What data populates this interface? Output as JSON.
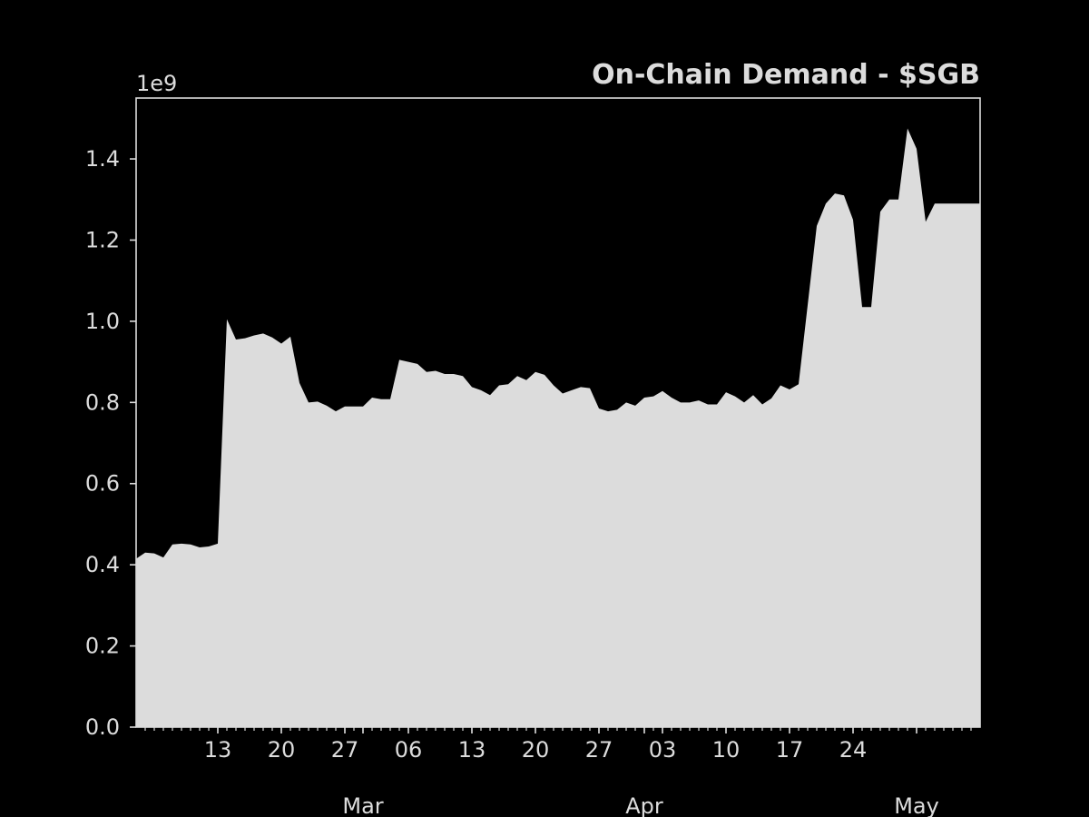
{
  "chart_data": {
    "type": "area",
    "title": "On-Chain Demand - $SGB",
    "xlabel": "",
    "ylabel": "",
    "y_offset_label": "1e9",
    "ylim": [
      0,
      1550000000.0
    ],
    "y_ticks": [
      0,
      200000000.0,
      400000000.0,
      600000000.0,
      800000000.0,
      1000000000.0,
      1200000000.0,
      1400000000.0
    ],
    "y_tick_labels": [
      "0.0",
      "0.2",
      "0.4",
      "0.6",
      "0.8",
      "1.0",
      "1.2",
      "1.4"
    ],
    "xlim": [
      "2022-02-04",
      "2022-05-08"
    ],
    "x_major_ticks": [
      {
        "date": "2022-02-13",
        "label": "13"
      },
      {
        "date": "2022-02-20",
        "label": "20"
      },
      {
        "date": "2022-02-27",
        "label": "27"
      },
      {
        "date": "2022-03-06",
        "label": "06"
      },
      {
        "date": "2022-03-13",
        "label": "13"
      },
      {
        "date": "2022-03-20",
        "label": "20"
      },
      {
        "date": "2022-03-27",
        "label": "27"
      },
      {
        "date": "2022-04-03",
        "label": "03"
      },
      {
        "date": "2022-04-10",
        "label": "10"
      },
      {
        "date": "2022-04-17",
        "label": "17"
      },
      {
        "date": "2022-04-24",
        "label": "24"
      }
    ],
    "x_month_ticks": [
      {
        "date": "2022-03-01",
        "label": "Mar"
      },
      {
        "date": "2022-04-01",
        "label": "Apr"
      },
      {
        "date": "2022-05-01",
        "label": "May"
      }
    ],
    "series": [
      {
        "x": [
          "2022-02-04",
          "2022-02-05",
          "2022-02-06",
          "2022-02-07",
          "2022-02-08",
          "2022-02-09",
          "2022-02-10",
          "2022-02-11",
          "2022-02-12",
          "2022-02-13",
          "2022-02-14",
          "2022-02-15",
          "2022-02-16",
          "2022-02-17",
          "2022-02-18",
          "2022-02-19",
          "2022-02-20",
          "2022-02-21",
          "2022-02-22",
          "2022-02-23",
          "2022-02-24",
          "2022-02-25",
          "2022-02-26",
          "2022-02-27",
          "2022-02-28",
          "2022-03-01",
          "2022-03-02",
          "2022-03-03",
          "2022-03-04",
          "2022-03-05",
          "2022-03-06",
          "2022-03-07",
          "2022-03-08",
          "2022-03-09",
          "2022-03-10",
          "2022-03-11",
          "2022-03-12",
          "2022-03-13",
          "2022-03-14",
          "2022-03-15",
          "2022-03-16",
          "2022-03-17",
          "2022-03-18",
          "2022-03-19",
          "2022-03-20",
          "2022-03-21",
          "2022-03-22",
          "2022-03-23",
          "2022-03-24",
          "2022-03-25",
          "2022-03-26",
          "2022-03-27",
          "2022-03-28",
          "2022-03-29",
          "2022-03-30",
          "2022-03-31",
          "2022-04-01",
          "2022-04-02",
          "2022-04-03",
          "2022-04-04",
          "2022-04-05",
          "2022-04-06",
          "2022-04-07",
          "2022-04-08",
          "2022-04-09",
          "2022-04-10",
          "2022-04-11",
          "2022-04-12",
          "2022-04-13",
          "2022-04-14",
          "2022-04-15",
          "2022-04-16",
          "2022-04-17",
          "2022-04-18",
          "2022-04-19",
          "2022-04-20",
          "2022-04-21",
          "2022-04-22",
          "2022-04-23",
          "2022-04-24",
          "2022-04-25",
          "2022-04-26",
          "2022-04-27",
          "2022-04-28",
          "2022-04-29",
          "2022-04-30",
          "2022-05-01",
          "2022-05-02",
          "2022-05-03",
          "2022-05-04",
          "2022-05-05",
          "2022-05-06",
          "2022-05-07",
          "2022-05-08"
        ],
        "values": [
          415000000.0,
          430000000.0,
          428000000.0,
          418000000.0,
          450000000.0,
          452000000.0,
          450000000.0,
          443000000.0,
          445000000.0,
          452000000.0,
          1005000000.0,
          955000000.0,
          958000000.0,
          965000000.0,
          970000000.0,
          960000000.0,
          945000000.0,
          962000000.0,
          848000000.0,
          800000000.0,
          802000000.0,
          792000000.0,
          778000000.0,
          790000000.0,
          790000000.0,
          790000000.0,
          812000000.0,
          808000000.0,
          808000000.0,
          905000000.0,
          900000000.0,
          895000000.0,
          875000000.0,
          878000000.0,
          870000000.0,
          870000000.0,
          865000000.0,
          838000000.0,
          830000000.0,
          818000000.0,
          842000000.0,
          845000000.0,
          865000000.0,
          855000000.0,
          875000000.0,
          868000000.0,
          842000000.0,
          822000000.0,
          830000000.0,
          838000000.0,
          835000000.0,
          785000000.0,
          778000000.0,
          782000000.0,
          800000000.0,
          792000000.0,
          812000000.0,
          815000000.0,
          828000000.0,
          812000000.0,
          800000000.0,
          800000000.0,
          805000000.0,
          795000000.0,
          795000000.0,
          825000000.0,
          815000000.0,
          800000000.0,
          818000000.0,
          795000000.0,
          810000000.0,
          842000000.0,
          832000000.0,
          845000000.0,
          1040000000.0,
          1235000000.0,
          1290000000.0,
          1315000000.0,
          1310000000.0,
          1250000000.0,
          1035000000.0,
          1035000000.0,
          1270000000.0,
          1300000000.0,
          1300000000.0,
          1475000000.0,
          1425000000.0,
          1245000000.0,
          1290000000.0,
          1290000000.0,
          1290000000.0,
          1290000000.0,
          1290000000.0,
          1290000000.0
        ]
      }
    ],
    "colors": {
      "background": "#000000",
      "fill": "#dcdcdc",
      "axes": "#dcdcdc",
      "text": "#dcdcdc"
    },
    "grid": false
  }
}
